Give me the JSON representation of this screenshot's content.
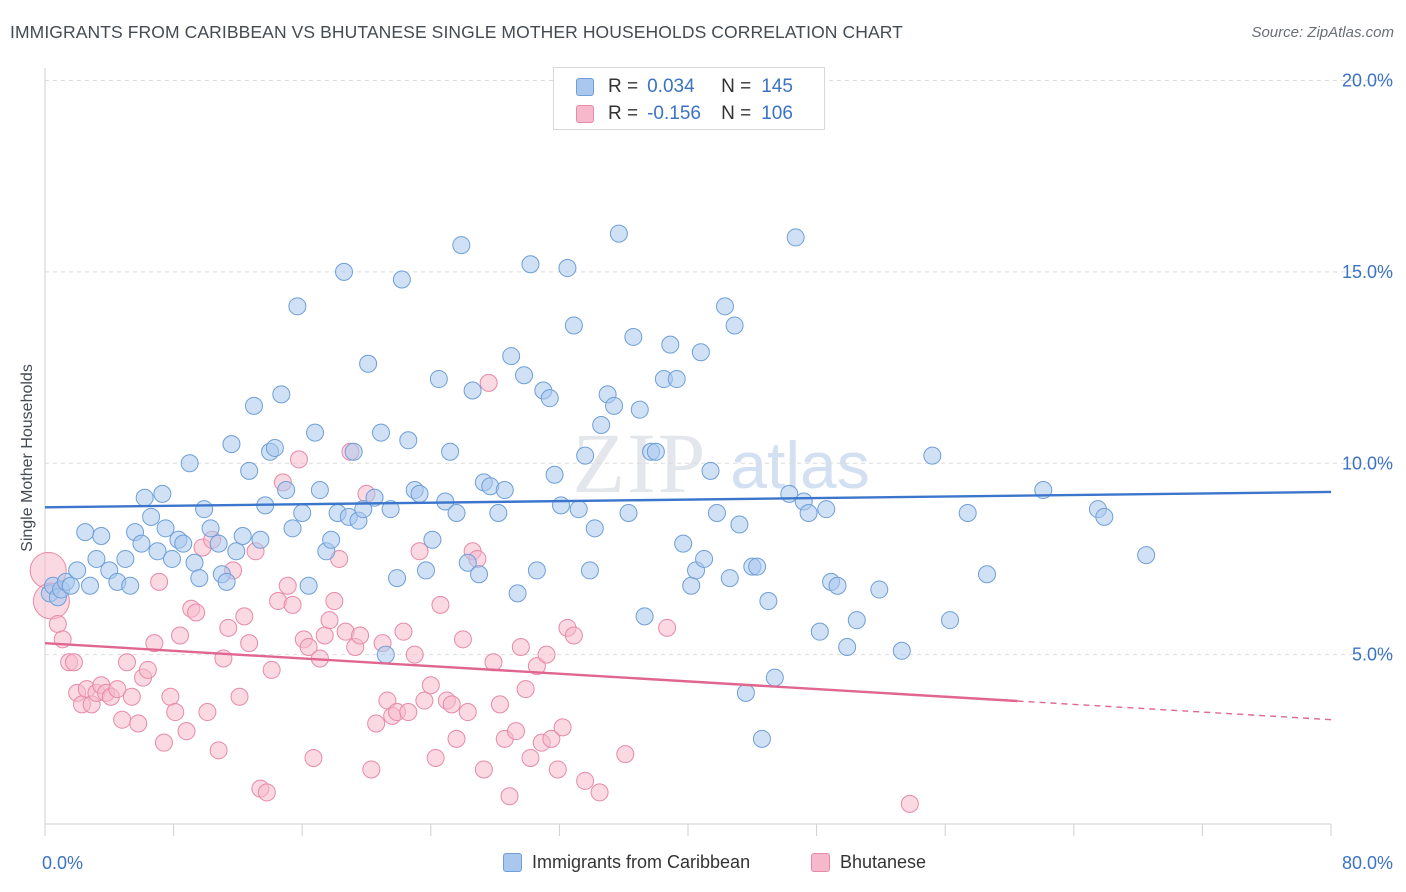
{
  "title": "IMMIGRANTS FROM CARIBBEAN VS BHUTANESE SINGLE MOTHER HOUSEHOLDS CORRELATION CHART",
  "source": "Source: ZipAtlas.com",
  "watermark": {
    "zip": "ZIP",
    "atlas": "atlas"
  },
  "legend": {
    "rows": [
      {
        "r_label": "R =",
        "r_value": "0.034",
        "n_label": "N =",
        "n_value": "145"
      },
      {
        "r_label": "R =",
        "r_value": "-0.156",
        "n_label": "N =",
        "n_value": "106"
      }
    ]
  },
  "colors": {
    "blue_fill": "#aac8ee",
    "blue_stroke": "#6e9fd8",
    "blue_line": "#3b76cc",
    "pink_fill": "#f6b9cc",
    "pink_stroke": "#e889a8",
    "pink_line": "#e0668f",
    "tick_text": "#3b73c4",
    "grid": "#dcdcdc"
  },
  "chart_data": {
    "type": "scatter",
    "xlabel": "",
    "ylabel": "Single Mother Households",
    "xlim": [
      0,
      80
    ],
    "ylim": [
      0,
      20
    ],
    "x_ticks": [
      "0.0%",
      "80.0%"
    ],
    "y_ticks": [
      {
        "value": 5,
        "label": "5.0%"
      },
      {
        "value": 10,
        "label": "10.0%"
      },
      {
        "value": 15,
        "label": "15.0%"
      },
      {
        "value": 20,
        "label": "20.0%"
      }
    ],
    "grid": "horizontal dashed",
    "legend_position": "top-center",
    "series": [
      {
        "name": "Immigrants from Caribbean",
        "color": "blue",
        "trend": {
          "x": [
            0,
            80
          ],
          "y": [
            8.85,
            9.25
          ],
          "solid_until": 80
        },
        "points": [
          [
            0.3,
            6.6
          ],
          [
            0.5,
            6.8
          ],
          [
            0.8,
            6.5
          ],
          [
            1.0,
            6.7
          ],
          [
            1.3,
            6.9
          ],
          [
            1.6,
            6.8
          ],
          [
            2.0,
            7.2
          ],
          [
            2.5,
            8.2
          ],
          [
            2.8,
            6.8
          ],
          [
            3.2,
            7.5
          ],
          [
            3.5,
            8.1
          ],
          [
            4.0,
            7.2
          ],
          [
            4.5,
            6.9
          ],
          [
            5.0,
            7.5
          ],
          [
            5.3,
            6.8
          ],
          [
            5.6,
            8.2
          ],
          [
            6.0,
            7.9
          ],
          [
            6.2,
            9.1
          ],
          [
            6.6,
            8.6
          ],
          [
            7.0,
            7.7
          ],
          [
            7.3,
            9.2
          ],
          [
            7.5,
            8.3
          ],
          [
            7.9,
            7.5
          ],
          [
            8.3,
            8.0
          ],
          [
            8.6,
            7.9
          ],
          [
            9.0,
            10.0
          ],
          [
            9.3,
            7.4
          ],
          [
            9.6,
            7.0
          ],
          [
            9.9,
            8.8
          ],
          [
            10.3,
            8.3
          ],
          [
            10.8,
            7.9
          ],
          [
            11.0,
            7.1
          ],
          [
            11.3,
            6.9
          ],
          [
            11.6,
            10.5
          ],
          [
            11.9,
            7.7
          ],
          [
            12.3,
            8.1
          ],
          [
            12.7,
            9.8
          ],
          [
            13.0,
            11.5
          ],
          [
            13.4,
            8.0
          ],
          [
            13.7,
            8.9
          ],
          [
            14.0,
            10.3
          ],
          [
            14.3,
            10.4
          ],
          [
            14.7,
            11.8
          ],
          [
            15.0,
            9.3
          ],
          [
            15.4,
            8.3
          ],
          [
            15.7,
            14.1
          ],
          [
            16.0,
            8.7
          ],
          [
            16.4,
            6.8
          ],
          [
            16.8,
            10.8
          ],
          [
            17.1,
            9.3
          ],
          [
            17.5,
            7.7
          ],
          [
            17.8,
            8.0
          ],
          [
            18.2,
            8.7
          ],
          [
            18.6,
            15.0
          ],
          [
            18.9,
            8.6
          ],
          [
            19.2,
            10.3
          ],
          [
            19.5,
            8.5
          ],
          [
            19.8,
            8.8
          ],
          [
            20.1,
            12.6
          ],
          [
            20.5,
            9.1
          ],
          [
            20.9,
            10.8
          ],
          [
            21.2,
            5.0
          ],
          [
            21.5,
            8.8
          ],
          [
            21.9,
            7.0
          ],
          [
            22.2,
            14.8
          ],
          [
            22.6,
            10.6
          ],
          [
            23.0,
            9.3
          ],
          [
            23.3,
            9.2
          ],
          [
            23.7,
            7.2
          ],
          [
            24.1,
            8.0
          ],
          [
            24.5,
            12.2
          ],
          [
            24.9,
            9.0
          ],
          [
            25.2,
            10.3
          ],
          [
            25.6,
            8.7
          ],
          [
            25.9,
            15.7
          ],
          [
            26.3,
            7.4
          ],
          [
            26.6,
            11.9
          ],
          [
            27.0,
            7.1
          ],
          [
            27.3,
            9.5
          ],
          [
            27.7,
            9.4
          ],
          [
            28.2,
            8.7
          ],
          [
            28.6,
            9.3
          ],
          [
            29.0,
            12.8
          ],
          [
            29.4,
            6.6
          ],
          [
            29.8,
            12.3
          ],
          [
            30.2,
            15.2
          ],
          [
            30.6,
            7.2
          ],
          [
            31.0,
            11.9
          ],
          [
            31.4,
            11.7
          ],
          [
            31.7,
            9.7
          ],
          [
            32.1,
            8.9
          ],
          [
            32.5,
            15.1
          ],
          [
            32.9,
            13.6
          ],
          [
            33.2,
            8.8
          ],
          [
            33.6,
            10.2
          ],
          [
            33.9,
            7.2
          ],
          [
            34.2,
            8.3
          ],
          [
            34.6,
            11.0
          ],
          [
            35.0,
            11.8
          ],
          [
            35.4,
            11.5
          ],
          [
            35.7,
            16.0
          ],
          [
            36.3,
            8.7
          ],
          [
            36.6,
            13.3
          ],
          [
            37.0,
            11.4
          ],
          [
            37.3,
            6.0
          ],
          [
            37.7,
            10.3
          ],
          [
            38.0,
            10.3
          ],
          [
            38.5,
            12.2
          ],
          [
            38.9,
            13.1
          ],
          [
            39.3,
            12.2
          ],
          [
            39.7,
            7.9
          ],
          [
            40.2,
            6.8
          ],
          [
            40.5,
            7.2
          ],
          [
            40.8,
            12.9
          ],
          [
            41.0,
            7.5
          ],
          [
            41.4,
            9.8
          ],
          [
            41.8,
            8.7
          ],
          [
            42.3,
            14.1
          ],
          [
            42.6,
            7.0
          ],
          [
            42.9,
            13.6
          ],
          [
            43.2,
            8.4
          ],
          [
            43.6,
            4.0
          ],
          [
            44.0,
            7.3
          ],
          [
            44.3,
            7.3
          ],
          [
            44.6,
            2.8
          ],
          [
            45.0,
            6.4
          ],
          [
            45.4,
            4.4
          ],
          [
            46.3,
            9.2
          ],
          [
            46.7,
            15.9
          ],
          [
            47.2,
            9.0
          ],
          [
            47.5,
            8.7
          ],
          [
            48.2,
            5.6
          ],
          [
            48.6,
            8.8
          ],
          [
            48.9,
            6.9
          ],
          [
            49.3,
            6.8
          ],
          [
            49.9,
            5.2
          ],
          [
            50.5,
            5.9
          ],
          [
            51.9,
            6.7
          ],
          [
            53.3,
            5.1
          ],
          [
            55.2,
            10.2
          ],
          [
            56.3,
            5.9
          ],
          [
            57.4,
            8.7
          ],
          [
            58.6,
            7.1
          ],
          [
            62.1,
            9.3
          ],
          [
            65.5,
            8.8
          ],
          [
            65.9,
            8.6
          ],
          [
            68.5,
            7.6
          ]
        ]
      },
      {
        "name": "Bhutanese",
        "color": "pink",
        "trend": {
          "x": [
            0,
            80
          ],
          "y": [
            5.3,
            3.3
          ],
          "solid_until": 60.5
        },
        "points": [
          [
            0.2,
            7.2
          ],
          [
            0.4,
            6.4
          ],
          [
            0.8,
            5.8
          ],
          [
            1.1,
            5.4
          ],
          [
            1.5,
            4.8
          ],
          [
            1.8,
            4.8
          ],
          [
            2.0,
            4.0
          ],
          [
            2.3,
            3.7
          ],
          [
            2.6,
            4.1
          ],
          [
            2.9,
            3.7
          ],
          [
            3.2,
            4.0
          ],
          [
            3.5,
            4.2
          ],
          [
            3.8,
            4.0
          ],
          [
            4.1,
            3.9
          ],
          [
            4.5,
            4.1
          ],
          [
            4.8,
            3.3
          ],
          [
            5.1,
            4.8
          ],
          [
            5.4,
            3.9
          ],
          [
            5.8,
            3.2
          ],
          [
            6.1,
            4.4
          ],
          [
            6.4,
            4.6
          ],
          [
            6.8,
            5.3
          ],
          [
            7.1,
            6.9
          ],
          [
            7.4,
            2.7
          ],
          [
            7.8,
            3.9
          ],
          [
            8.1,
            3.5
          ],
          [
            8.4,
            5.5
          ],
          [
            8.8,
            3.0
          ],
          [
            9.1,
            6.2
          ],
          [
            9.4,
            6.1
          ],
          [
            9.8,
            7.8
          ],
          [
            10.1,
            3.5
          ],
          [
            10.4,
            8.0
          ],
          [
            10.8,
            2.5
          ],
          [
            11.1,
            4.9
          ],
          [
            11.4,
            5.7
          ],
          [
            11.7,
            7.2
          ],
          [
            12.1,
            3.9
          ],
          [
            12.4,
            6.0
          ],
          [
            12.7,
            5.3
          ],
          [
            13.1,
            7.7
          ],
          [
            13.4,
            1.5
          ],
          [
            13.8,
            1.4
          ],
          [
            14.1,
            4.6
          ],
          [
            14.5,
            6.4
          ],
          [
            14.8,
            9.5
          ],
          [
            15.1,
            6.8
          ],
          [
            15.4,
            6.3
          ],
          [
            15.8,
            10.1
          ],
          [
            16.1,
            5.4
          ],
          [
            16.4,
            5.2
          ],
          [
            16.7,
            2.3
          ],
          [
            17.1,
            4.9
          ],
          [
            17.4,
            5.5
          ],
          [
            17.7,
            5.9
          ],
          [
            18.0,
            6.4
          ],
          [
            18.3,
            7.5
          ],
          [
            18.7,
            5.6
          ],
          [
            19.0,
            10.3
          ],
          [
            19.3,
            5.2
          ],
          [
            19.6,
            5.5
          ],
          [
            20.0,
            9.2
          ],
          [
            20.3,
            2.0
          ],
          [
            20.6,
            3.2
          ],
          [
            21.0,
            5.3
          ],
          [
            21.3,
            3.8
          ],
          [
            21.6,
            3.4
          ],
          [
            21.9,
            3.5
          ],
          [
            22.3,
            5.6
          ],
          [
            22.6,
            3.5
          ],
          [
            23.0,
            5.0
          ],
          [
            23.3,
            7.7
          ],
          [
            23.6,
            3.8
          ],
          [
            24.0,
            4.2
          ],
          [
            24.3,
            2.3
          ],
          [
            24.6,
            6.3
          ],
          [
            25.0,
            3.8
          ],
          [
            25.3,
            3.7
          ],
          [
            25.6,
            2.8
          ],
          [
            26.0,
            5.4
          ],
          [
            26.3,
            3.5
          ],
          [
            26.6,
            7.7
          ],
          [
            26.9,
            7.5
          ],
          [
            27.3,
            2.0
          ],
          [
            27.6,
            12.1
          ],
          [
            27.9,
            4.8
          ],
          [
            28.3,
            3.7
          ],
          [
            28.6,
            2.8
          ],
          [
            28.9,
            1.3
          ],
          [
            29.3,
            3.0
          ],
          [
            29.6,
            5.2
          ],
          [
            29.9,
            4.1
          ],
          [
            30.2,
            2.3
          ],
          [
            30.6,
            4.7
          ],
          [
            30.9,
            2.7
          ],
          [
            31.2,
            5.0
          ],
          [
            31.5,
            2.8
          ],
          [
            31.9,
            2.0
          ],
          [
            32.2,
            3.1
          ],
          [
            32.5,
            5.7
          ],
          [
            32.9,
            5.5
          ],
          [
            33.6,
            1.7
          ],
          [
            34.5,
            1.4
          ],
          [
            36.1,
            2.4
          ],
          [
            38.7,
            5.7
          ],
          [
            53.8,
            1.1
          ]
        ]
      }
    ]
  },
  "bottom_legend": {
    "items": [
      {
        "label": "Immigrants from Caribbean",
        "color": "blue"
      },
      {
        "label": "Bhutanese",
        "color": "pink"
      }
    ]
  }
}
